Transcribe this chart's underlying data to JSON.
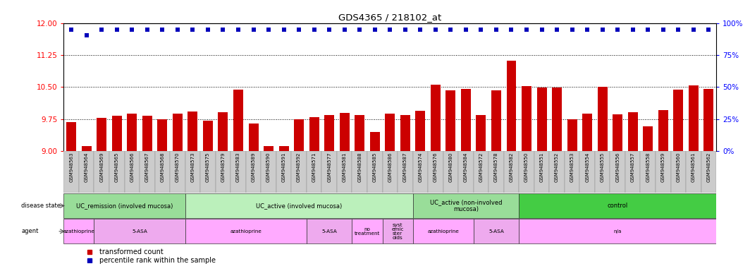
{
  "title": "GDS4365 / 218102_at",
  "samples": [
    "GSM948563",
    "GSM948564",
    "GSM948569",
    "GSM948565",
    "GSM948566",
    "GSM948567",
    "GSM948568",
    "GSM948570",
    "GSM948573",
    "GSM948575",
    "GSM948579",
    "GSM948583",
    "GSM948589",
    "GSM948590",
    "GSM948591",
    "GSM948592",
    "GSM948571",
    "GSM948577",
    "GSM948581",
    "GSM948588",
    "GSM948585",
    "GSM948586",
    "GSM948587",
    "GSM948574",
    "GSM948576",
    "GSM948580",
    "GSM948584",
    "GSM948572",
    "GSM948578",
    "GSM948582",
    "GSM948550",
    "GSM948551",
    "GSM948552",
    "GSM948553",
    "GSM948554",
    "GSM948555",
    "GSM948556",
    "GSM948557",
    "GSM948558",
    "GSM948559",
    "GSM948560",
    "GSM948561",
    "GSM948562"
  ],
  "bar_values": [
    9.68,
    9.12,
    9.78,
    9.83,
    9.87,
    9.83,
    9.74,
    9.88,
    9.93,
    9.72,
    9.91,
    10.44,
    9.65,
    9.12,
    9.11,
    9.75,
    9.79,
    9.84,
    9.89,
    9.85,
    9.45,
    9.87,
    9.84,
    9.94,
    10.56,
    10.43,
    10.46,
    9.85,
    10.42,
    11.11,
    10.53,
    10.49,
    10.49,
    9.75,
    9.87,
    10.5,
    9.86,
    9.91,
    9.58,
    9.96,
    10.44,
    10.54,
    10.46
  ],
  "percentile_values": [
    11.84,
    11.72,
    11.84,
    11.84,
    11.84,
    11.84,
    11.84,
    11.84,
    11.84,
    11.84,
    11.84,
    11.84,
    11.84,
    11.84,
    11.84,
    11.84,
    11.84,
    11.84,
    11.84,
    11.84,
    11.84,
    11.84,
    11.84,
    11.84,
    11.84,
    11.84,
    11.84,
    11.84,
    11.84,
    11.84,
    11.84,
    11.84,
    11.84,
    11.84,
    11.84,
    11.84,
    11.84,
    11.84,
    11.84,
    11.84,
    11.84,
    11.84,
    11.84
  ],
  "ylim_left": [
    9.0,
    12.0
  ],
  "yticks_left": [
    9.0,
    9.75,
    10.5,
    11.25,
    12.0
  ],
  "yticks_right": [
    0,
    25,
    50,
    75,
    100
  ],
  "bar_color": "#cc0000",
  "dot_color": "#0000bb",
  "plot_bg_color": "#ffffff",
  "tick_label_bg": "#d0d0d0",
  "disease_state_groups": [
    {
      "label": "UC_remission (involved mucosa)",
      "start": 0,
      "end": 8,
      "color": "#99dd99"
    },
    {
      "label": "UC_active (involved mucosa)",
      "start": 8,
      "end": 23,
      "color": "#bbf0bb"
    },
    {
      "label": "UC_active (non-involved\nmucosa)",
      "start": 23,
      "end": 30,
      "color": "#99dd99"
    },
    {
      "label": "control",
      "start": 30,
      "end": 43,
      "color": "#44cc44"
    }
  ],
  "agent_groups": [
    {
      "label": "azathioprine",
      "start": 0,
      "end": 2,
      "color": "#ffaaff"
    },
    {
      "label": "5-ASA",
      "start": 2,
      "end": 8,
      "color": "#eeaaee"
    },
    {
      "label": "azathioprine",
      "start": 8,
      "end": 16,
      "color": "#ffaaff"
    },
    {
      "label": "5-ASA",
      "start": 16,
      "end": 19,
      "color": "#eeaaee"
    },
    {
      "label": "no\ntreatment",
      "start": 19,
      "end": 21,
      "color": "#ffaaff"
    },
    {
      "label": "syst\nemic\nster\noids",
      "start": 21,
      "end": 23,
      "color": "#eeaaee"
    },
    {
      "label": "azathioprine",
      "start": 23,
      "end": 27,
      "color": "#ffaaff"
    },
    {
      "label": "5-ASA",
      "start": 27,
      "end": 30,
      "color": "#eeaaee"
    },
    {
      "label": "n/a",
      "start": 30,
      "end": 43,
      "color": "#ffaaff"
    }
  ]
}
